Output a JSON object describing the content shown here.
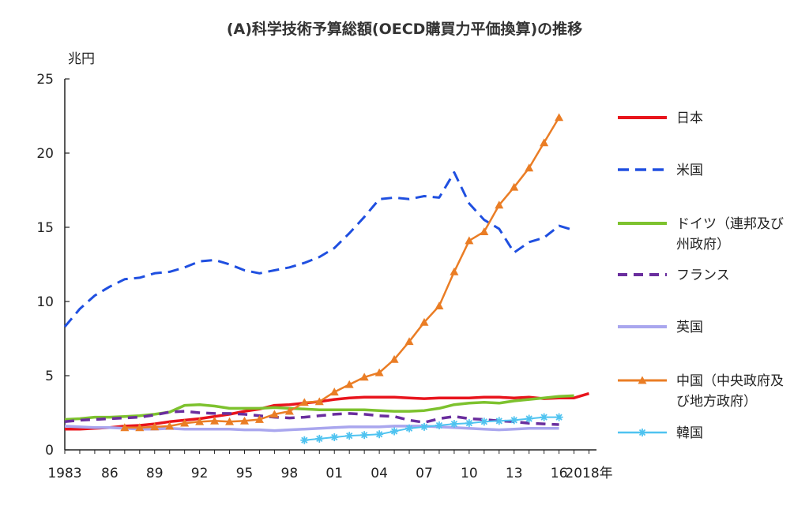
{
  "title": "(A)科学技術予算総額(OECD購買力平価換算)の推移",
  "chart_data": {
    "type": "line",
    "ylabel": "兆円",
    "ylim": [
      0,
      25
    ],
    "yticks": [
      "0",
      "5",
      "10",
      "15",
      "20",
      "25"
    ],
    "xlim": [
      1983,
      2018
    ],
    "xticks": [
      {
        "year": 1983,
        "label": "1983"
      },
      {
        "year": 1986,
        "label": "86"
      },
      {
        "year": 1989,
        "label": "89"
      },
      {
        "year": 1992,
        "label": "92"
      },
      {
        "year": 1995,
        "label": "95"
      },
      {
        "year": 1998,
        "label": "98"
      },
      {
        "year": 2001,
        "label": "01"
      },
      {
        "year": 2004,
        "label": "04"
      },
      {
        "year": 2007,
        "label": "07"
      },
      {
        "year": 2010,
        "label": "10"
      },
      {
        "year": 2013,
        "label": "13"
      },
      {
        "year": 2016,
        "label": "16"
      },
      {
        "year": 2018,
        "label": "2018年"
      }
    ],
    "legend_position": "right",
    "series": [
      {
        "name": "日本",
        "legend_lines": [
          "日本"
        ],
        "color": "#e8141c",
        "dash": "",
        "marker": "none",
        "width": 3.5,
        "x": [
          1983,
          1984,
          1985,
          1986,
          1987,
          1988,
          1989,
          1990,
          1991,
          1992,
          1993,
          1994,
          1995,
          1996,
          1997,
          1998,
          1999,
          2000,
          2001,
          2002,
          2003,
          2004,
          2005,
          2006,
          2007,
          2008,
          2009,
          2010,
          2011,
          2012,
          2013,
          2014,
          2015,
          2016,
          2017,
          2018
        ],
        "y": [
          1.4,
          1.4,
          1.45,
          1.5,
          1.6,
          1.65,
          1.75,
          1.9,
          2.0,
          2.1,
          2.25,
          2.4,
          2.6,
          2.75,
          3.0,
          3.05,
          3.15,
          3.25,
          3.4,
          3.5,
          3.55,
          3.55,
          3.55,
          3.5,
          3.45,
          3.5,
          3.5,
          3.5,
          3.55,
          3.55,
          3.5,
          3.55,
          3.45,
          3.5,
          3.5,
          3.8
        ]
      },
      {
        "name": "米国",
        "legend_lines": [
          "米国"
        ],
        "color": "#1f4fe0",
        "dash": "14,8",
        "marker": "none",
        "width": 3,
        "x": [
          1983,
          1984,
          1985,
          1986,
          1987,
          1988,
          1989,
          1990,
          1991,
          1992,
          1993,
          1994,
          1995,
          1996,
          1997,
          1998,
          1999,
          2000,
          2001,
          2002,
          2003,
          2004,
          2005,
          2006,
          2007,
          2008,
          2009,
          2010,
          2011,
          2012,
          2013,
          2014,
          2015,
          2016,
          2017
        ],
        "y": [
          8.3,
          9.5,
          10.4,
          11.0,
          11.5,
          11.6,
          11.9,
          12.0,
          12.3,
          12.7,
          12.8,
          12.5,
          12.1,
          11.9,
          12.1,
          12.3,
          12.6,
          13.0,
          13.6,
          14.6,
          15.7,
          16.9,
          17.0,
          16.9,
          17.1,
          17.0,
          18.7,
          16.6,
          15.5,
          14.9,
          13.3,
          14.0,
          14.3,
          15.1,
          14.8
        ]
      },
      {
        "name": "ドイツ（連邦及び州政府）",
        "legend_lines": [
          "ドイツ（連邦及び",
          "州政府）"
        ],
        "color": "#7dc22e",
        "dash": "",
        "marker": "none",
        "width": 3.5,
        "x": [
          1983,
          1984,
          1985,
          1986,
          1987,
          1988,
          1989,
          1990,
          1991,
          1992,
          1993,
          1994,
          1995,
          1996,
          1997,
          1998,
          1999,
          2000,
          2001,
          2002,
          2003,
          2004,
          2005,
          2006,
          2007,
          2008,
          2009,
          2010,
          2011,
          2012,
          2013,
          2014,
          2015,
          2016,
          2017
        ],
        "y": [
          2.05,
          2.1,
          2.2,
          2.2,
          2.25,
          2.3,
          2.4,
          2.55,
          3.0,
          3.05,
          2.95,
          2.8,
          2.8,
          2.8,
          2.85,
          2.8,
          2.75,
          2.7,
          2.7,
          2.7,
          2.7,
          2.65,
          2.6,
          2.6,
          2.65,
          2.8,
          3.05,
          3.15,
          3.2,
          3.15,
          3.3,
          3.4,
          3.5,
          3.6,
          3.65
        ]
      },
      {
        "name": "フランス",
        "legend_lines": [
          "フランス"
        ],
        "color": "#6a2e9e",
        "dash": "12,8",
        "marker": "none",
        "width": 3.5,
        "x": [
          1983,
          1984,
          1985,
          1986,
          1987,
          1988,
          1989,
          1990,
          1991,
          1992,
          1993,
          1994,
          1995,
          1996,
          1997,
          1998,
          1999,
          2000,
          2001,
          2002,
          2003,
          2004,
          2005,
          2006,
          2007,
          2008,
          2009,
          2010,
          2011,
          2012,
          2013,
          2014,
          2015,
          2016
        ],
        "y": [
          1.9,
          2.0,
          2.05,
          2.1,
          2.15,
          2.2,
          2.35,
          2.55,
          2.6,
          2.5,
          2.45,
          2.45,
          2.4,
          2.3,
          2.2,
          2.15,
          2.2,
          2.3,
          2.4,
          2.45,
          2.4,
          2.3,
          2.25,
          2.0,
          1.85,
          2.1,
          2.25,
          2.1,
          2.05,
          1.95,
          1.9,
          1.8,
          1.75,
          1.7
        ]
      },
      {
        "name": "英国",
        "legend_lines": [
          "英国"
        ],
        "color": "#a9a6ee",
        "dash": "",
        "marker": "none",
        "width": 3.5,
        "x": [
          1983,
          1984,
          1985,
          1986,
          1987,
          1988,
          1989,
          1990,
          1991,
          1992,
          1993,
          1994,
          1995,
          1996,
          1997,
          1998,
          1999,
          2000,
          2001,
          2002,
          2003,
          2004,
          2005,
          2006,
          2007,
          2008,
          2009,
          2010,
          2011,
          2012,
          2013,
          2014,
          2015,
          2016
        ],
        "y": [
          1.6,
          1.55,
          1.5,
          1.5,
          1.45,
          1.4,
          1.4,
          1.45,
          1.4,
          1.4,
          1.4,
          1.4,
          1.35,
          1.35,
          1.3,
          1.35,
          1.4,
          1.45,
          1.5,
          1.55,
          1.55,
          1.55,
          1.6,
          1.6,
          1.6,
          1.55,
          1.5,
          1.45,
          1.4,
          1.35,
          1.4,
          1.45,
          1.45,
          1.45
        ]
      },
      {
        "name": "中国（中央政府及び地方政府）",
        "legend_lines": [
          "中国（中央政府及",
          "び地方政府）"
        ],
        "color": "#ea7d25",
        "dash": "",
        "marker": "triangle",
        "width": 2.5,
        "x": [
          1987,
          1988,
          1989,
          1990,
          1991,
          1992,
          1993,
          1994,
          1995,
          1996,
          1997,
          1998,
          1999,
          2000,
          2001,
          2002,
          2003,
          2004,
          2005,
          2006,
          2007,
          2008,
          2009,
          2010,
          2011,
          2012,
          2013,
          2014,
          2015,
          2016
        ],
        "y": [
          1.5,
          1.5,
          1.55,
          1.6,
          1.8,
          1.9,
          1.95,
          1.9,
          1.95,
          2.05,
          2.4,
          2.6,
          3.2,
          3.25,
          3.9,
          4.4,
          4.9,
          5.2,
          6.1,
          7.3,
          8.6,
          9.7,
          12.0,
          14.1,
          14.7,
          16.5,
          17.7,
          19.0,
          20.7,
          22.4
        ]
      },
      {
        "name": "韓国",
        "legend_lines": [
          "韓国"
        ],
        "color": "#4fc3f0",
        "dash": "",
        "marker": "star",
        "width": 2,
        "x": [
          1999,
          2000,
          2001,
          2002,
          2003,
          2004,
          2005,
          2006,
          2007,
          2008,
          2009,
          2010,
          2011,
          2012,
          2013,
          2014,
          2015,
          2016
        ],
        "y": [
          0.65,
          0.75,
          0.85,
          0.95,
          1.0,
          1.05,
          1.25,
          1.45,
          1.55,
          1.65,
          1.75,
          1.8,
          1.9,
          1.95,
          2.0,
          2.1,
          2.2,
          2.2
        ]
      }
    ]
  }
}
